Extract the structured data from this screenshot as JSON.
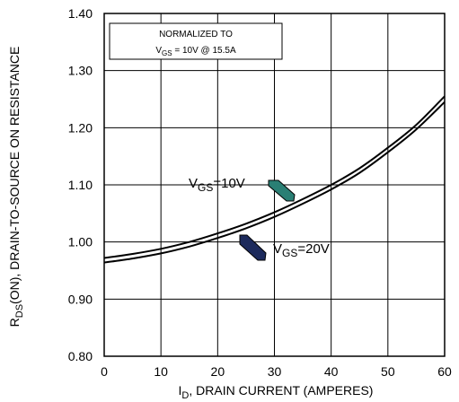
{
  "chart_data": {
    "type": "line",
    "xlabel_symbol": "I",
    "xlabel_sub": "D",
    "xlabel_rest": ", DRAIN CURRENT (AMPERES)",
    "ylabel_symbol": "R",
    "ylabel_sub": "DS",
    "ylabel_rest": "(ON), DRAIN-TO-SOURCE ON RESISTANCE",
    "xlim": [
      0,
      60
    ],
    "ylim": [
      0.8,
      1.4
    ],
    "xticks": [
      "0",
      "10",
      "20",
      "30",
      "40",
      "50",
      "60"
    ],
    "yticks": [
      "0.80",
      "0.90",
      "1.00",
      "1.10",
      "1.20",
      "1.30",
      "1.40"
    ],
    "grid": true,
    "note_line1": "NORMALIZED  TO",
    "note_line2_a": "V",
    "note_line2_sub": "GS",
    "note_line2_b": " = 10V   @   15.5A",
    "series": [
      {
        "name_a": "V",
        "name_sub": "GS",
        "name_b": "=10V",
        "x": [
          0,
          5,
          10,
          15,
          20,
          25,
          30,
          35,
          40,
          45,
          50,
          55,
          60
        ],
        "values": [
          0.972,
          0.979,
          0.988,
          1.0,
          1.015,
          1.032,
          1.052,
          1.075,
          1.1,
          1.129,
          1.165,
          1.205,
          1.255
        ]
      },
      {
        "name_a": "V",
        "name_sub": "GS",
        "name_b": "=20V",
        "x": [
          0,
          5,
          10,
          15,
          20,
          25,
          30,
          35,
          40,
          45,
          50,
          55,
          60
        ],
        "values": [
          0.964,
          0.971,
          0.98,
          0.992,
          1.007,
          1.024,
          1.044,
          1.067,
          1.092,
          1.121,
          1.157,
          1.197,
          1.245
        ]
      }
    ],
    "colors": {
      "arrow_10v": "#2a7f74",
      "arrow_20v": "#1c2a5c"
    }
  }
}
